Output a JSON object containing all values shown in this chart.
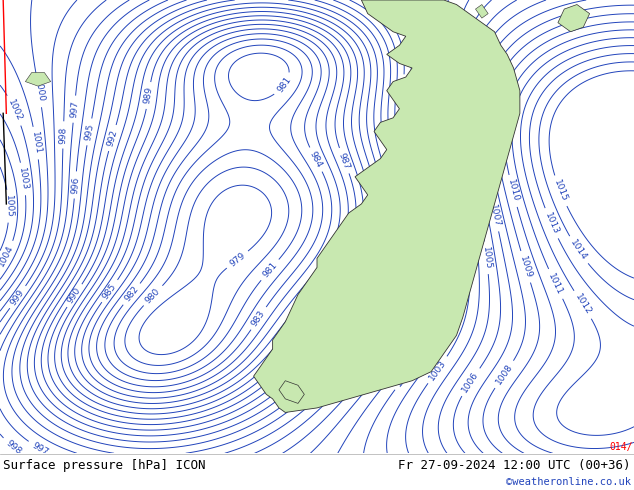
{
  "title_left": "Surface pressure [hPa] ICON",
  "title_right": "Fr 27-09-2024 12:00 UTC (00+36)",
  "credit": "©weatheronline.co.uk",
  "bg_color": "#e8eef5",
  "land_color": "#c8e8b0",
  "land_edge": "#333333",
  "contour_color": "#2244bb",
  "text_color": "#000000",
  "credit_color": "#2244bb",
  "red_label": "014/",
  "figsize": [
    6.34,
    4.9
  ],
  "dpi": 100,
  "contour_interval": 1,
  "pressure_base": 1000,
  "label_fontsize": 6.5,
  "contour_linewidth": 0.7
}
